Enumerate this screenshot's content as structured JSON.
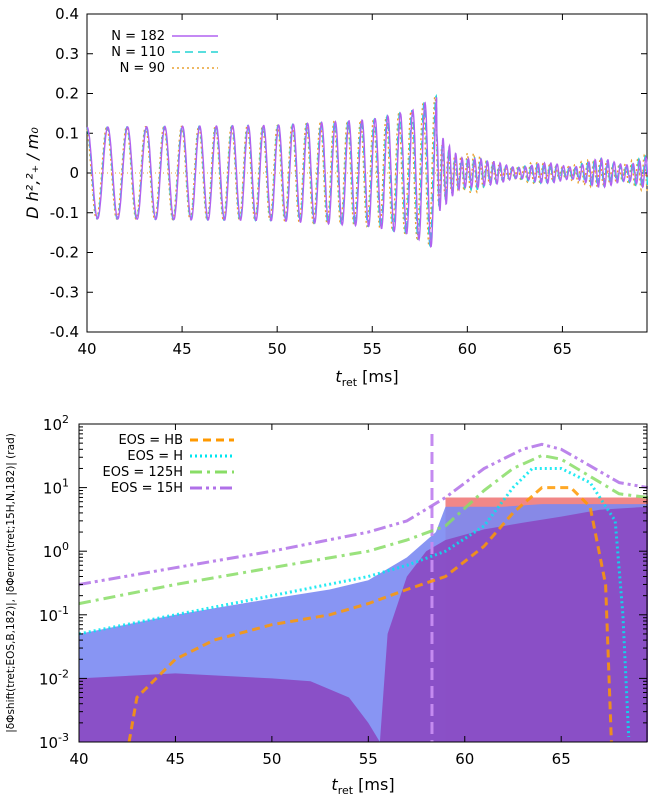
{
  "chart_data": [
    {
      "type": "line",
      "title": "",
      "xlabel_main": "t",
      "xlabel_sub": "ret",
      "xlabel_unit": " [ms]",
      "ylabel": "D h²,²₊ / m₀",
      "xlim": [
        40,
        69.5
      ],
      "ylim": [
        -0.4,
        0.4
      ],
      "xticks": [
        "40",
        "45",
        "50",
        "55",
        "60",
        "65"
      ],
      "yticks": [
        "0.4",
        "0.3",
        "0.2",
        "0.1",
        "0",
        "-0.1",
        "-0.2",
        "-0.3",
        "-0.4"
      ],
      "legend_position": "top-left",
      "series": [
        {
          "name": "N = 182",
          "color": "#b062f0",
          "style": "solid"
        },
        {
          "name": "N = 110",
          "color": "#22d3d3",
          "style": "dashed"
        },
        {
          "name": "N = 90",
          "color": "#e8a030",
          "style": "dotted"
        }
      ],
      "waveform": {
        "inspiral_amplitude": [
          [
            40,
            0.115
          ],
          [
            50,
            0.12
          ],
          [
            55,
            0.135
          ],
          [
            57,
            0.155
          ],
          [
            58.4,
            0.195
          ]
        ],
        "frequency_khz": [
          [
            40,
            0.9
          ],
          [
            58.4,
            1.6
          ]
        ],
        "merger_time": 58.4,
        "postmerger_amplitude": [
          [
            58.4,
            0.1
          ],
          [
            60,
            0.07
          ],
          [
            61,
            0.03
          ],
          [
            64,
            0.025
          ],
          [
            69.5,
            0.045
          ]
        ],
        "postmerger_frequency_khz": 3.0
      }
    },
    {
      "type": "area",
      "title": "",
      "xlabel_main": "t",
      "xlabel_sub": "ret",
      "xlabel_unit": " [ms]",
      "ylabel": "|δΦshift(tret;EOS,B,182)|, |δΦerror(tret;15H,N,182)| (rad)",
      "xlim": [
        40,
        69.5
      ],
      "ylim": [
        0.001,
        100
      ],
      "yscale": "log",
      "xticks": [
        "40",
        "45",
        "50",
        "55",
        "60",
        "65"
      ],
      "yticks": [
        {
          "base": "10",
          "exp": "2",
          "value": 100
        },
        {
          "base": "10",
          "exp": "1",
          "value": 10
        },
        {
          "base": "10",
          "exp": "0",
          "value": 1
        },
        {
          "base": "10",
          "exp": "-1",
          "value": 0.1
        },
        {
          "base": "10",
          "exp": "-2",
          "value": 0.01
        },
        {
          "base": "10",
          "exp": "-3",
          "value": 0.001
        }
      ],
      "legend_position": "top-left",
      "vline": {
        "x": 58.3,
        "color": "#c48af0"
      },
      "areas": [
        {
          "color": "#f07a7a",
          "points": [
            [
              59,
              7
            ],
            [
              69.5,
              7
            ]
          ],
          "start": 59,
          "end": 69.5
        },
        {
          "color": "#7b89f2",
          "points": [
            [
              40,
              0.05
            ],
            [
              45,
              0.1
            ],
            [
              50,
              0.18
            ],
            [
              53,
              0.25
            ],
            [
              55,
              0.35
            ],
            [
              57,
              0.8
            ],
            [
              58.5,
              2
            ],
            [
              59,
              5
            ],
            [
              62,
              5
            ],
            [
              64,
              5.5
            ],
            [
              66,
              5.5
            ],
            [
              69.5,
              5.5
            ]
          ]
        },
        {
          "color": "#8a4cc4",
          "points": [
            [
              40,
              0.01
            ],
            [
              45,
              0.012
            ],
            [
              50,
              0.01
            ],
            [
              52,
              0.009
            ],
            [
              54,
              0.005
            ],
            [
              55,
              0.002
            ],
            [
              55.6,
              0.001
            ],
            [
              56,
              0.05
            ],
            [
              57,
              0.4
            ],
            [
              58,
              1
            ],
            [
              59,
              1.5
            ],
            [
              61,
              2.2
            ],
            [
              63,
              2.8
            ],
            [
              65,
              3.5
            ],
            [
              67,
              4.5
            ],
            [
              69.5,
              5
            ]
          ]
        }
      ],
      "series": [
        {
          "name": "EOS = HB",
          "color": "#ff9900",
          "style": "dashed",
          "points": [
            [
              42.6,
              0.001
            ],
            [
              43,
              0.005
            ],
            [
              45,
              0.02
            ],
            [
              47,
              0.04
            ],
            [
              50,
              0.07
            ],
            [
              53,
              0.1
            ],
            [
              55,
              0.15
            ],
            [
              57,
              0.25
            ],
            [
              59,
              0.4
            ],
            [
              61,
              1.2
            ],
            [
              62.5,
              4
            ],
            [
              64,
              10
            ],
            [
              65.5,
              10
            ],
            [
              66.5,
              5
            ],
            [
              67.3,
              0.3
            ],
            [
              67.6,
              0.001
            ]
          ]
        },
        {
          "name": "EOS = H",
          "color": "#00e6f0",
          "style": "dotted",
          "points": [
            [
              40,
              0.05
            ],
            [
              45,
              0.1
            ],
            [
              50,
              0.2
            ],
            [
              55,
              0.4
            ],
            [
              57,
              0.6
            ],
            [
              59,
              1.0
            ],
            [
              61,
              2.5
            ],
            [
              62.5,
              10
            ],
            [
              63.5,
              20
            ],
            [
              65,
              20
            ],
            [
              66.5,
              12
            ],
            [
              67.8,
              3
            ],
            [
              68.2,
              0.1
            ],
            [
              68.5,
              0.0012
            ]
          ]
        },
        {
          "name": "EOS = 125H",
          "color": "#88dd66",
          "style": "dashdot",
          "points": [
            [
              40,
              0.15
            ],
            [
              45,
              0.3
            ],
            [
              50,
              0.55
            ],
            [
              55,
              1.0
            ],
            [
              57,
              1.5
            ],
            [
              59,
              2.5
            ],
            [
              61,
              9
            ],
            [
              62.5,
              20
            ],
            [
              64,
              32
            ],
            [
              65,
              28
            ],
            [
              66.5,
              15
            ],
            [
              68,
              8
            ],
            [
              69.5,
              7
            ]
          ]
        },
        {
          "name": "EOS = 15H",
          "color": "#b070e8",
          "style": "dashdotdot",
          "points": [
            [
              40,
              0.3
            ],
            [
              45,
              0.55
            ],
            [
              50,
              1.0
            ],
            [
              55,
              2.0
            ],
            [
              57,
              3.0
            ],
            [
              59,
              7
            ],
            [
              61,
              20
            ],
            [
              63,
              40
            ],
            [
              64,
              48
            ],
            [
              65,
              40
            ],
            [
              66.5,
              22
            ],
            [
              68,
              12
            ],
            [
              69.5,
              10
            ]
          ]
        }
      ]
    }
  ]
}
